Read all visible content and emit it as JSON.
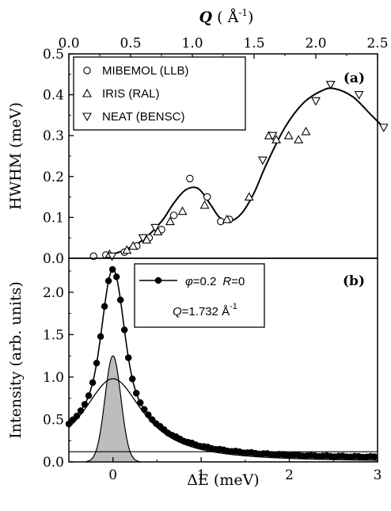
{
  "chart_data": [
    {
      "panel": "(a)",
      "type": "scatter",
      "xlabel": "Q",
      "xunit": "Å",
      "xunit_exp": "-1",
      "ylabel": "HWHM (meV)",
      "xlim": [
        0.0,
        2.5
      ],
      "ylim": [
        0.0,
        0.5
      ],
      "xticks": [
        "0.0",
        "0.5",
        "1.0",
        "1.5",
        "2.0",
        "2.5"
      ],
      "yticks": [
        "0.0",
        "0.1",
        "0.2",
        "0.3",
        "0.4",
        "0.5"
      ],
      "legend_position": "top-left",
      "series": [
        {
          "name": "MIBEMOL (LLB)",
          "marker": "circle",
          "x": [
            0.2,
            0.3,
            0.45,
            0.55,
            0.65,
            0.75,
            0.85,
            0.98,
            1.12,
            1.23,
            1.3
          ],
          "y": [
            0.005,
            0.008,
            0.015,
            0.03,
            0.05,
            0.07,
            0.105,
            0.195,
            0.15,
            0.09,
            0.095
          ]
        },
        {
          "name": "IRIS (RAL)",
          "marker": "triangle-up",
          "x": [
            0.33,
            0.47,
            0.52,
            0.63,
            0.72,
            0.82,
            0.92,
            1.1,
            1.28,
            1.46,
            1.62,
            1.68,
            1.78,
            1.86,
            1.92
          ],
          "y": [
            0.01,
            0.02,
            0.03,
            0.045,
            0.065,
            0.09,
            0.115,
            0.13,
            0.095,
            0.15,
            0.3,
            0.29,
            0.3,
            0.29,
            0.31
          ]
        },
        {
          "name": "NEAT (BENSC)",
          "marker": "triangle-down",
          "x": [
            0.35,
            0.6,
            0.7,
            1.57,
            1.65,
            2.0,
            2.12,
            2.35,
            2.55
          ],
          "y": [
            0.005,
            0.05,
            0.075,
            0.24,
            0.3,
            0.385,
            0.425,
            0.4,
            0.32
          ]
        }
      ],
      "fit_curve": {
        "x": [
          0.3,
          0.45,
          0.6,
          0.75,
          0.85,
          0.95,
          1.05,
          1.15,
          1.22,
          1.3,
          1.4,
          1.5,
          1.6,
          1.75,
          1.9,
          2.05,
          2.15,
          2.3,
          2.45,
          2.55
        ],
        "y": [
          0.005,
          0.02,
          0.045,
          0.09,
          0.135,
          0.168,
          0.17,
          0.13,
          0.1,
          0.09,
          0.11,
          0.16,
          0.23,
          0.32,
          0.38,
          0.41,
          0.415,
          0.395,
          0.35,
          0.32
        ]
      }
    },
    {
      "panel": "(b)",
      "type": "line",
      "xlabel": "ΔE (meV)",
      "ylabel": "Intensity (arb. units)",
      "xlim": [
        -0.5,
        3.0
      ],
      "ylim": [
        0.0,
        2.4
      ],
      "xticks": [
        "0",
        "1",
        "2",
        "3"
      ],
      "yticks": [
        "0.0",
        "0.5",
        "1.0",
        "1.5",
        "2.0"
      ],
      "legend_position": "top-right",
      "legend": {
        "phi_symbol": "φ",
        "phi_value": "=0.2",
        "r_symbol": "R",
        "r_value": "=0",
        "q_symbol": "Q",
        "q_value": "=1.732 Å",
        "q_exp": "-1"
      },
      "series": [
        {
          "name": "φ=0.2 R=0",
          "role": "data points with total fit",
          "marker": "filled-circle",
          "gamma_broad": 0.42,
          "gamma_narrow": 0.11,
          "amp_broad": 0.98,
          "amp_narrow": 1.25,
          "background": 0.04,
          "peak_value": 2.35
        },
        {
          "name": "elastic (shaded)",
          "shape": "gaussian",
          "amplitude": 1.25,
          "sigma": 0.09
        },
        {
          "name": "quasielastic",
          "shape": "lorentzian",
          "amplitude": 0.98,
          "hwhm": 0.42
        },
        {
          "name": "background",
          "shape": "flat",
          "value": 0.12
        }
      ]
    }
  ],
  "panel_labels": {
    "a": "(a)",
    "b": "(b)"
  }
}
